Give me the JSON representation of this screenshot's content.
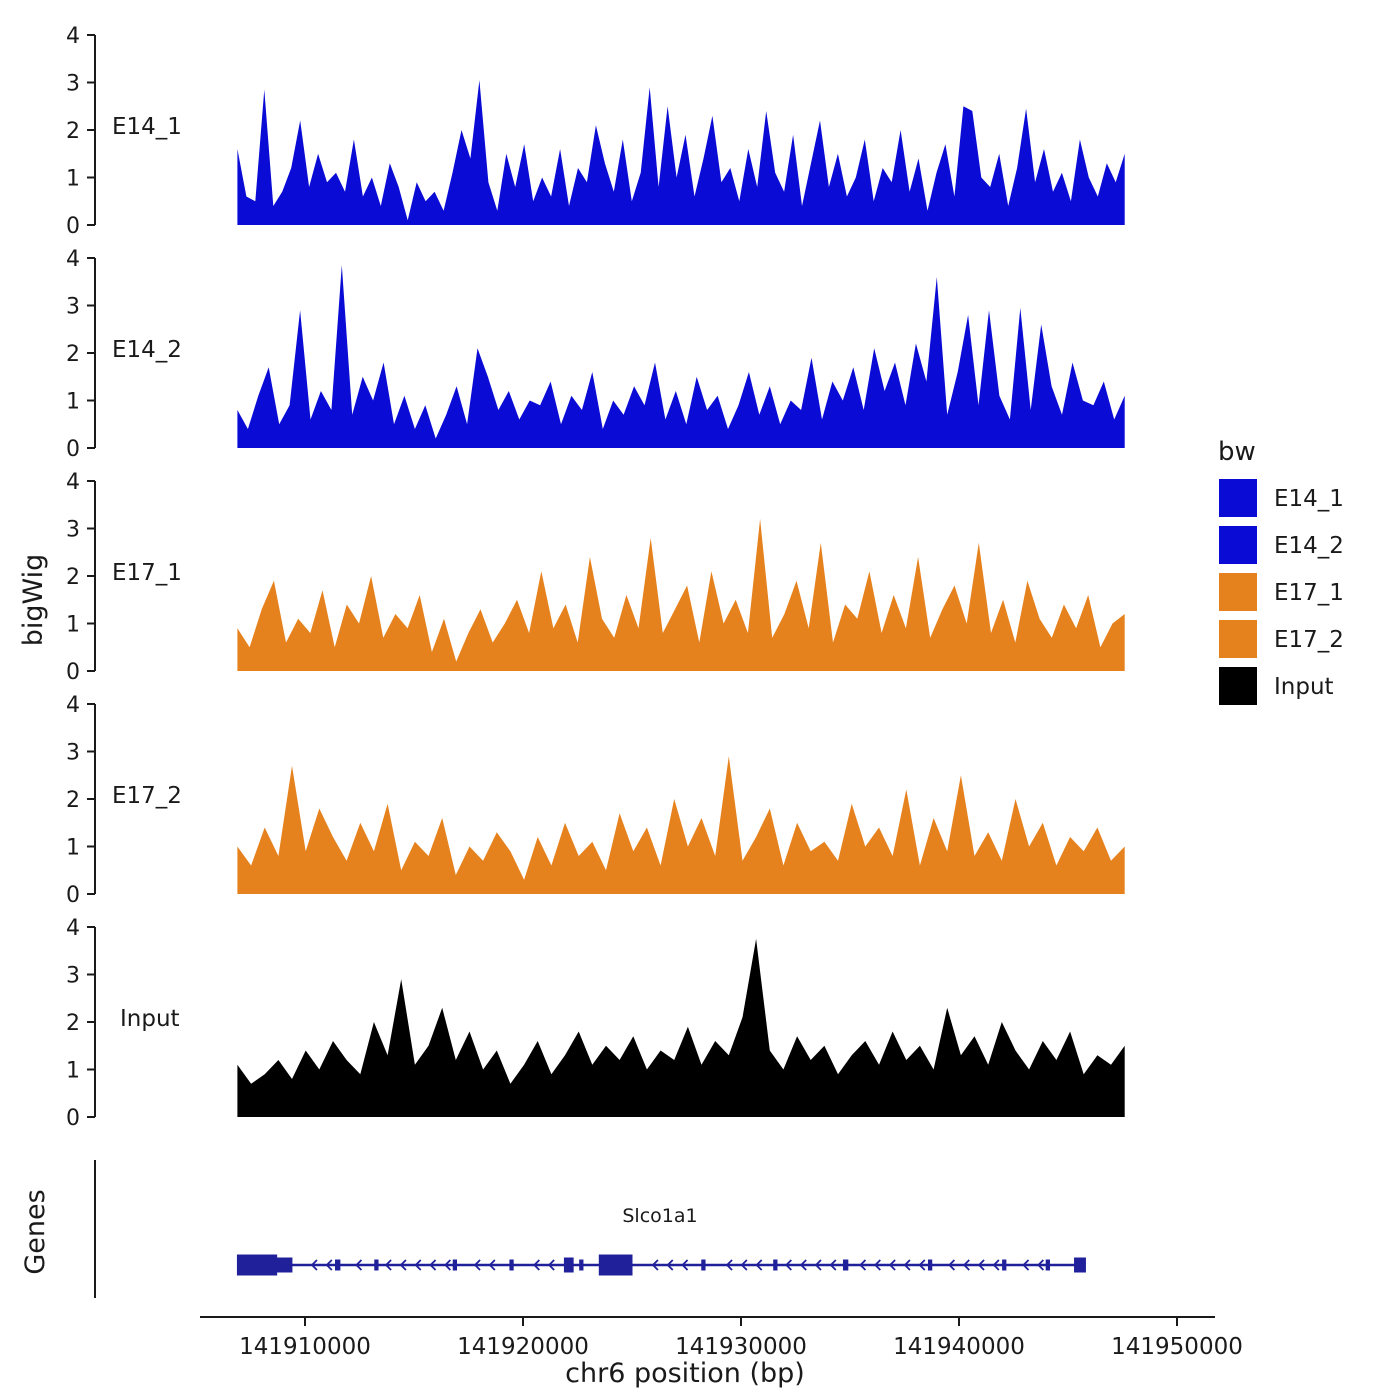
{
  "figure": {
    "background": "#ffffff"
  },
  "y_axis": {
    "label": "bigWig",
    "ticks": [
      0,
      1,
      2,
      3,
      4
    ],
    "max": 4
  },
  "x_axis": {
    "label": "chr6 position (bp)",
    "ticks": [
      141910000,
      141920000,
      141930000,
      141940000,
      141950000
    ],
    "tick_labels": [
      "141910000",
      "141920000",
      "141930000",
      "141940000",
      "141950000"
    ]
  },
  "legend": {
    "title": "bw",
    "entries": [
      {
        "label": "E14_1",
        "color": "#0b0bd6"
      },
      {
        "label": "E14_2",
        "color": "#0b0bd6"
      },
      {
        "label": "E17_1",
        "color": "#e6821e"
      },
      {
        "label": "E17_2",
        "color": "#e6821e"
      },
      {
        "label": "Input",
        "color": "#000000"
      }
    ]
  },
  "genes": {
    "panel_label": "Genes",
    "gene_name": "Slco1a1",
    "strand": "-",
    "color": "#20209b",
    "start_bp": 141906900,
    "end_bp": 141945800,
    "exons": [
      {
        "start": 141906900,
        "end": 141908700,
        "h": 20
      },
      {
        "start": 141908700,
        "end": 141909400,
        "h": 14
      },
      {
        "start": 141911400,
        "end": 141911600,
        "h": 10
      },
      {
        "start": 141913200,
        "end": 141913350,
        "h": 10
      },
      {
        "start": 141916800,
        "end": 141916950,
        "h": 10
      },
      {
        "start": 141919400,
        "end": 141919550,
        "h": 10
      },
      {
        "start": 141921900,
        "end": 141922300,
        "h": 14
      },
      {
        "start": 141922600,
        "end": 141922750,
        "h": 10
      },
      {
        "start": 141923500,
        "end": 141925000,
        "h": 20
      },
      {
        "start": 141928200,
        "end": 141928350,
        "h": 10
      },
      {
        "start": 141931500,
        "end": 141931650,
        "h": 10
      },
      {
        "start": 141934700,
        "end": 141934900,
        "h": 10
      },
      {
        "start": 141938600,
        "end": 141938750,
        "h": 10
      },
      {
        "start": 141942000,
        "end": 141942150,
        "h": 10
      },
      {
        "start": 141944000,
        "end": 141944150,
        "h": 10
      },
      {
        "start": 141945300,
        "end": 141945800,
        "h": 14
      }
    ]
  },
  "chart_data": {
    "type": "area",
    "title": "",
    "xlabel": "chr6 position (bp)",
    "ylabel": "bigWig",
    "ylim": [
      0,
      4
    ],
    "x_range_bp": [
      141906900,
      141947600
    ],
    "tracks": [
      {
        "name": "E14_1",
        "color": "#0b0bd6",
        "start_bp": 141906900,
        "end_bp": 141947600,
        "values": [
          1.6,
          0.6,
          0.5,
          2.85,
          0.4,
          0.7,
          1.2,
          2.2,
          0.8,
          1.5,
          0.9,
          1.1,
          0.7,
          1.8,
          0.6,
          1.0,
          0.4,
          1.3,
          0.8,
          0.1,
          0.9,
          0.5,
          0.7,
          0.3,
          1.1,
          2.0,
          1.4,
          3.05,
          0.9,
          0.3,
          1.5,
          0.8,
          1.7,
          0.5,
          1.0,
          0.6,
          1.6,
          0.4,
          1.2,
          0.9,
          2.1,
          1.3,
          0.7,
          1.8,
          0.5,
          1.1,
          2.9,
          0.8,
          2.5,
          1.0,
          1.9,
          0.6,
          1.4,
          2.3,
          0.9,
          1.2,
          0.5,
          1.6,
          0.8,
          2.4,
          1.1,
          0.7,
          1.9,
          0.4,
          1.3,
          2.2,
          0.8,
          1.5,
          0.6,
          1.0,
          1.8,
          0.5,
          1.2,
          0.9,
          2.0,
          0.7,
          1.4,
          0.3,
          1.1,
          1.7,
          0.6,
          2.5,
          2.4,
          1.0,
          0.8,
          1.5,
          0.4,
          1.2,
          2.45,
          0.9,
          1.6,
          0.7,
          1.1,
          0.5,
          1.8,
          1.0,
          0.6,
          1.3,
          0.9,
          1.5
        ]
      },
      {
        "name": "E14_2",
        "color": "#0b0bd6",
        "start_bp": 141906900,
        "end_bp": 141947600,
        "values": [
          0.8,
          0.4,
          1.1,
          1.7,
          0.5,
          0.9,
          2.9,
          0.6,
          1.2,
          0.8,
          3.85,
          0.7,
          1.5,
          1.0,
          1.8,
          0.5,
          1.1,
          0.4,
          0.9,
          0.2,
          0.7,
          1.3,
          0.5,
          2.1,
          1.5,
          0.8,
          1.2,
          0.6,
          1.0,
          0.9,
          1.4,
          0.5,
          1.1,
          0.8,
          1.6,
          0.4,
          1.0,
          0.7,
          1.3,
          0.9,
          1.8,
          0.6,
          1.2,
          0.5,
          1.5,
          0.8,
          1.1,
          0.4,
          0.9,
          1.6,
          0.7,
          1.3,
          0.5,
          1.0,
          0.8,
          1.9,
          0.6,
          1.4,
          1.0,
          1.7,
          0.8,
          2.1,
          1.2,
          1.8,
          0.9,
          2.2,
          1.4,
          3.6,
          0.7,
          1.6,
          2.8,
          0.9,
          2.9,
          1.1,
          0.6,
          2.95,
          0.8,
          2.6,
          1.3,
          0.7,
          1.8,
          1.0,
          0.9,
          1.4,
          0.6,
          1.1
        ]
      },
      {
        "name": "E17_1",
        "color": "#e6821e",
        "start_bp": 141906900,
        "end_bp": 141947600,
        "values": [
          0.9,
          0.5,
          1.3,
          1.9,
          0.6,
          1.1,
          0.8,
          1.7,
          0.5,
          1.4,
          1.0,
          2.0,
          0.7,
          1.2,
          0.9,
          1.6,
          0.4,
          1.1,
          0.2,
          0.8,
          1.3,
          0.6,
          1.0,
          1.5,
          0.8,
          2.1,
          0.9,
          1.4,
          0.6,
          2.4,
          1.1,
          0.7,
          1.6,
          0.9,
          2.8,
          0.8,
          1.3,
          1.8,
          0.6,
          2.1,
          1.0,
          1.5,
          0.8,
          3.2,
          0.7,
          1.2,
          1.9,
          0.9,
          2.7,
          0.6,
          1.4,
          1.1,
          2.1,
          0.8,
          1.6,
          0.9,
          2.4,
          0.7,
          1.3,
          1.8,
          1.0,
          2.7,
          0.8,
          1.5,
          0.6,
          1.9,
          1.1,
          0.7,
          1.4,
          0.9,
          1.6,
          0.5,
          1.0,
          1.2
        ]
      },
      {
        "name": "E17_2",
        "color": "#e6821e",
        "start_bp": 141906900,
        "end_bp": 141947600,
        "values": [
          1.0,
          0.6,
          1.4,
          0.8,
          2.7,
          0.9,
          1.8,
          1.2,
          0.7,
          1.5,
          0.9,
          1.9,
          0.5,
          1.1,
          0.8,
          1.6,
          0.4,
          1.0,
          0.7,
          1.3,
          0.9,
          0.3,
          1.2,
          0.6,
          1.5,
          0.8,
          1.1,
          0.5,
          1.7,
          0.9,
          1.4,
          0.6,
          2.0,
          1.0,
          1.6,
          0.8,
          2.9,
          0.7,
          1.2,
          1.8,
          0.6,
          1.5,
          0.9,
          1.1,
          0.7,
          1.9,
          1.0,
          1.4,
          0.8,
          2.2,
          0.6,
          1.6,
          0.9,
          2.5,
          0.8,
          1.3,
          0.7,
          2.0,
          1.0,
          1.5,
          0.6,
          1.2,
          0.9,
          1.4,
          0.7,
          1.0
        ]
      },
      {
        "name": "Input",
        "color": "#000000",
        "start_bp": 141906900,
        "end_bp": 141947600,
        "values": [
          1.1,
          0.7,
          0.9,
          1.2,
          0.8,
          1.4,
          1.0,
          1.6,
          1.2,
          0.9,
          2.0,
          1.3,
          2.9,
          1.1,
          1.5,
          2.3,
          1.2,
          1.8,
          1.0,
          1.4,
          0.7,
          1.1,
          1.6,
          0.9,
          1.3,
          1.8,
          1.1,
          1.5,
          1.2,
          1.7,
          1.0,
          1.4,
          1.2,
          1.9,
          1.1,
          1.6,
          1.3,
          2.1,
          3.75,
          1.4,
          1.0,
          1.7,
          1.2,
          1.5,
          0.9,
          1.3,
          1.6,
          1.1,
          1.8,
          1.2,
          1.5,
          1.0,
          2.3,
          1.3,
          1.7,
          1.1,
          2.0,
          1.4,
          1.0,
          1.6,
          1.2,
          1.8,
          0.9,
          1.3,
          1.1,
          1.5
        ]
      }
    ]
  }
}
